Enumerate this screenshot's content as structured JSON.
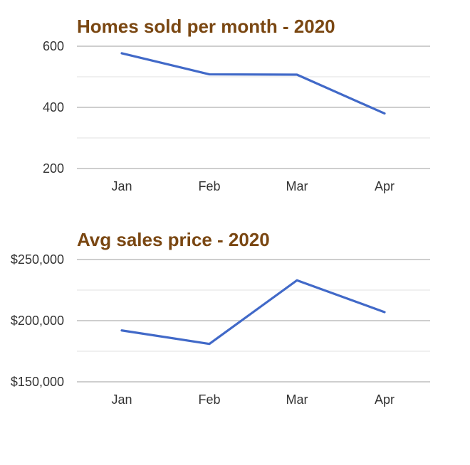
{
  "chart_data": [
    {
      "type": "line",
      "title": "Homes sold per month - 2020",
      "categories": [
        "Jan",
        "Feb",
        "Mar",
        "Apr"
      ],
      "series": [
        {
          "values": [
            577,
            508,
            507,
            380
          ]
        }
      ],
      "yticks": [
        200,
        400,
        600
      ],
      "ytick_labels": [
        "200",
        "400",
        "600"
      ],
      "ylim": [
        200,
        600
      ],
      "grid": true,
      "legend": "none",
      "line_color": "#4169c8",
      "title_color": "#7a4712"
    },
    {
      "type": "line",
      "title": "Avg sales price - 2020",
      "categories": [
        "Jan",
        "Feb",
        "Mar",
        "Apr"
      ],
      "series": [
        {
          "values": [
            192000,
            181000,
            233000,
            207000
          ]
        }
      ],
      "yticks": [
        150000,
        200000,
        250000
      ],
      "ytick_labels": [
        "$150,000",
        "$200,000",
        "$250,000"
      ],
      "ylim": [
        150000,
        250000
      ],
      "grid": true,
      "legend": "none",
      "line_color": "#4169c8",
      "title_color": "#7a4712"
    }
  ]
}
